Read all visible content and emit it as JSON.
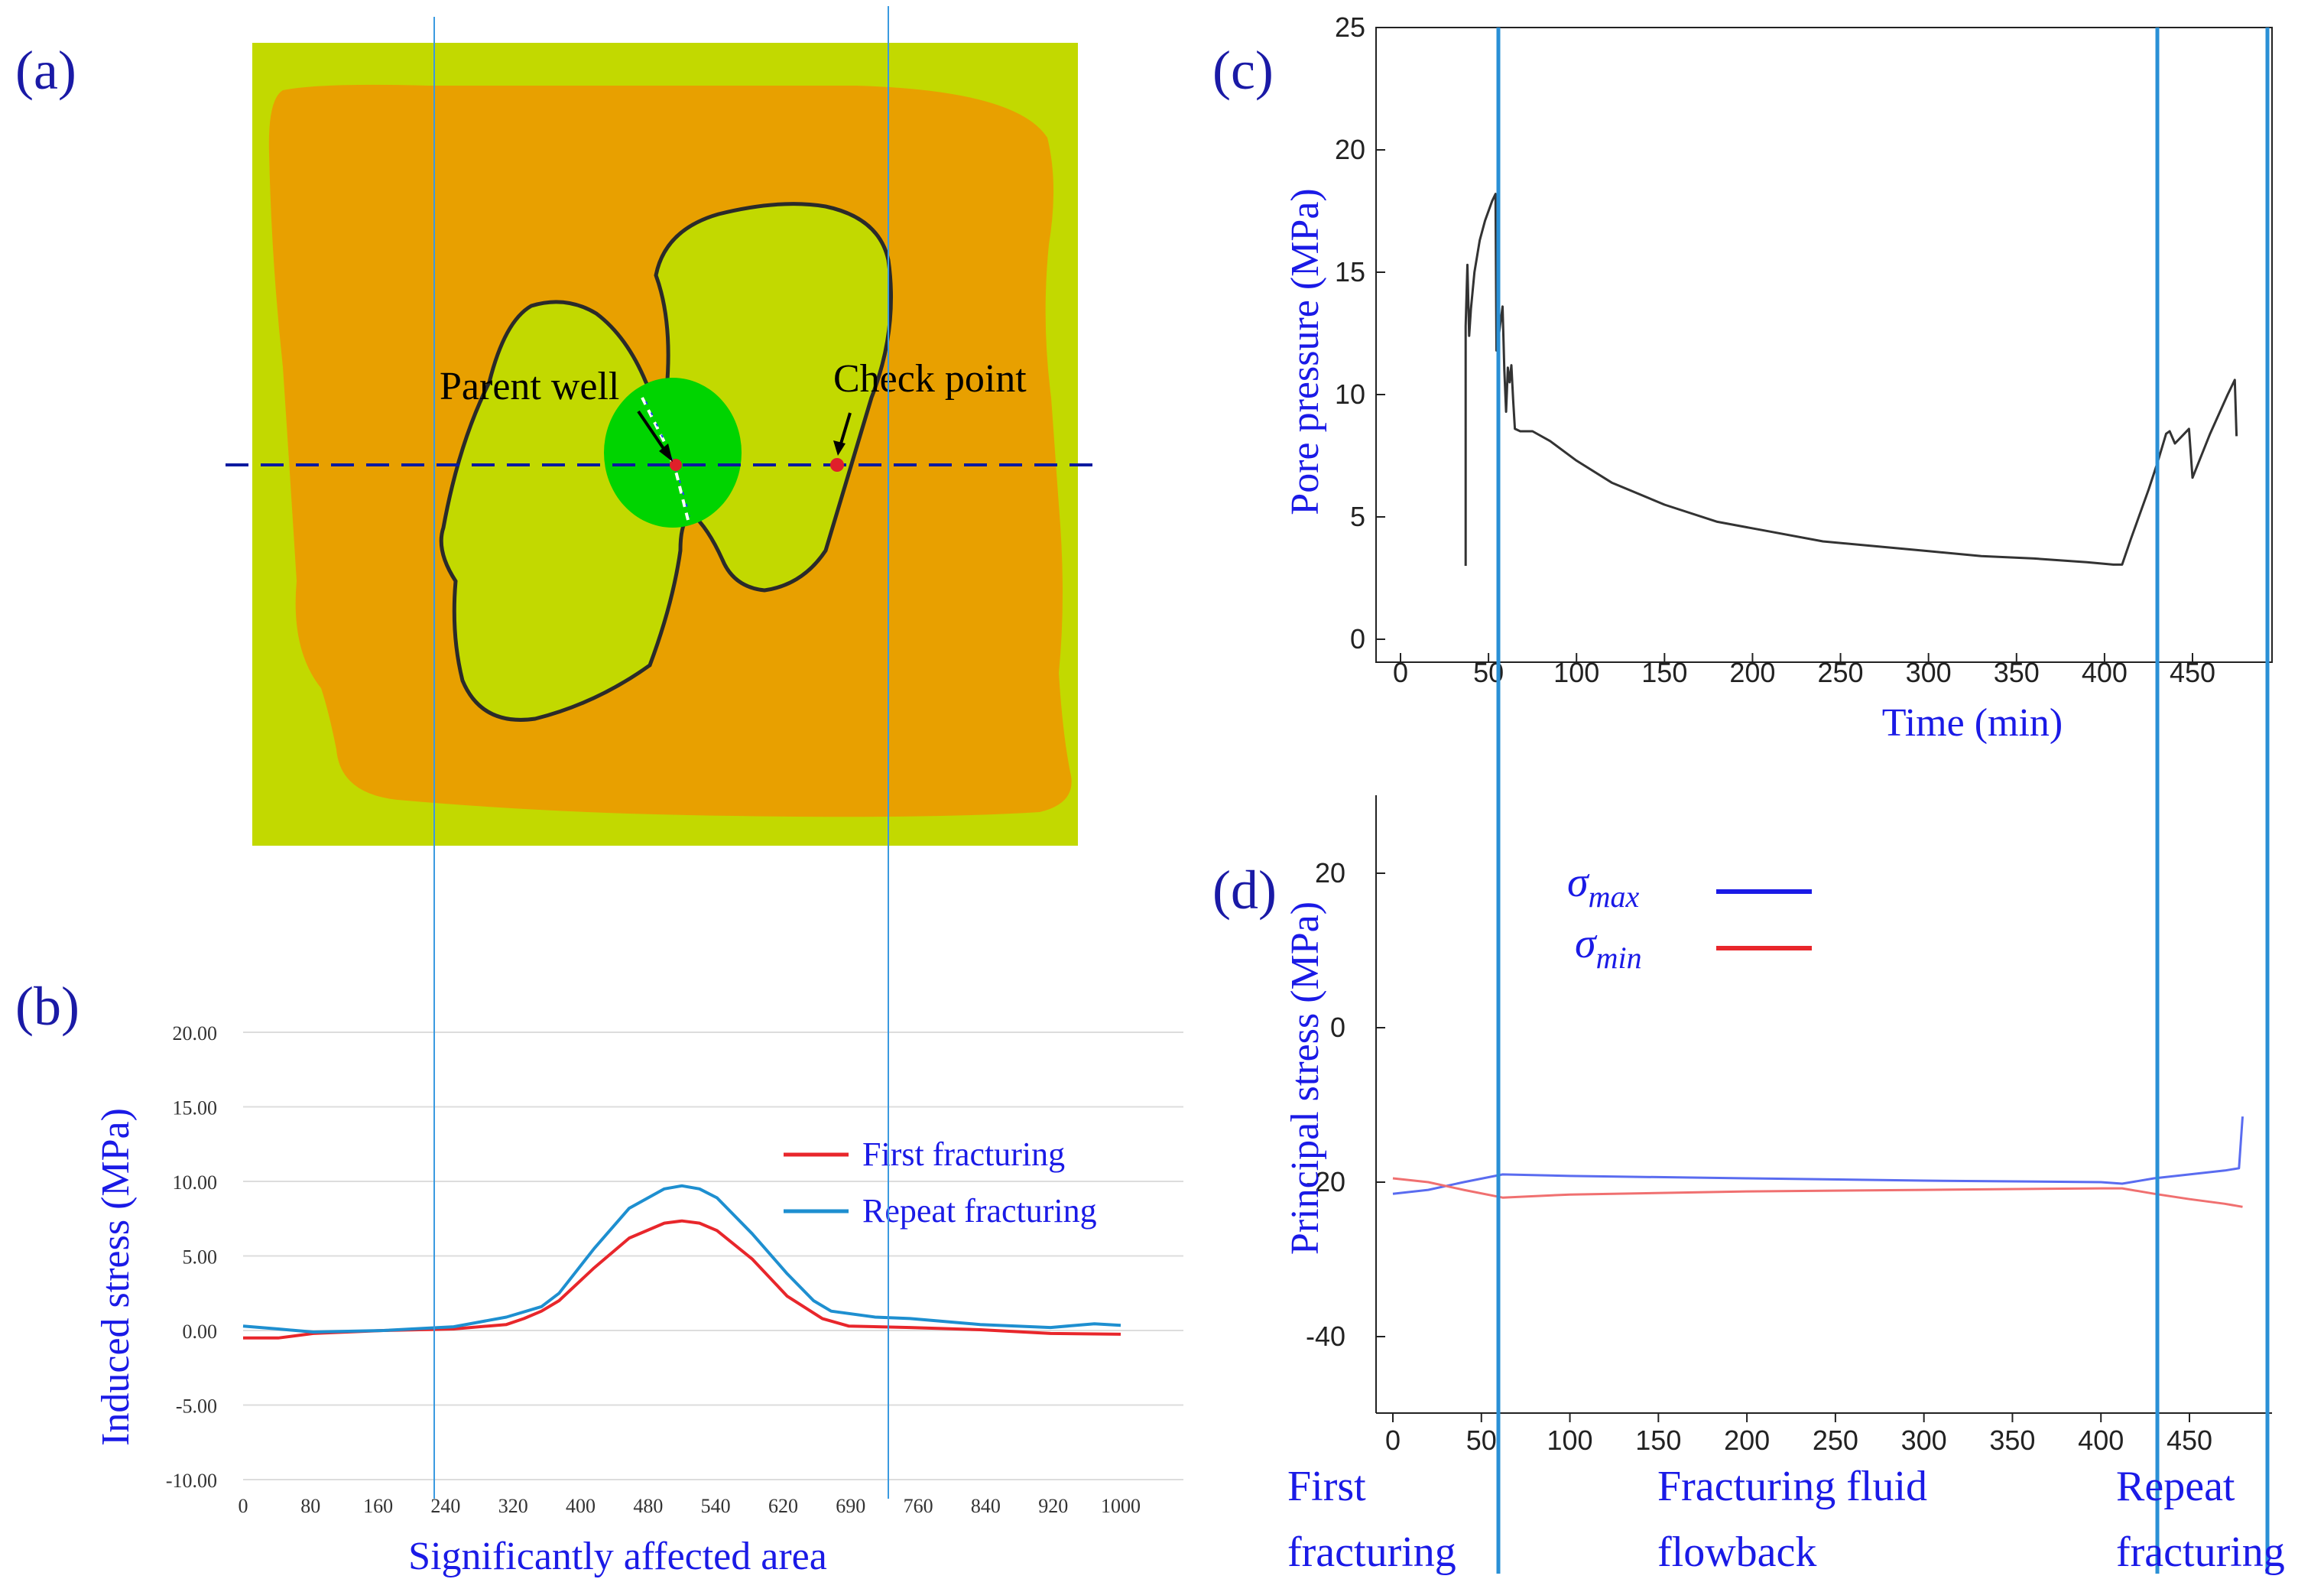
{
  "colors": {
    "label_blue": "#1a1ae6",
    "panel_label": "#1a1aa6",
    "guide": "#2a90d6",
    "series_red": "#e8262b",
    "series_teal": "#1e8fd0",
    "sigma_max": "#5a6cf0",
    "sigma_min": "#f07070",
    "field_outer": "#c2d900",
    "field_orange": "#e8a000",
    "field_green": "#00d400",
    "dash": "#0a1aa0"
  },
  "panel_a": {
    "label": "(a)",
    "parent_well": "Parent well",
    "check_point": "Check point"
  },
  "chart_data": [
    {
      "panel": "(b)",
      "type": "line",
      "xlabel": "Significantly  affected area",
      "ylabel": "Induced stress (MPa)",
      "xlim": [
        0,
        1000
      ],
      "ylim": [
        -10,
        20
      ],
      "x_ticks": [
        "0",
        "80",
        "160",
        "240",
        "320",
        "400",
        "480",
        "540",
        "620",
        "690",
        "760",
        "840",
        "920",
        "1000"
      ],
      "y_ticks": [
        "20.00",
        "15.00",
        "10.00",
        "5.00",
        "0.00",
        "-5.00",
        "-10.00"
      ],
      "series": [
        {
          "name": "First fracturing",
          "color": "#e8262b",
          "points": [
            [
              0,
              -0.5
            ],
            [
              40,
              -0.5
            ],
            [
              80,
              -0.2
            ],
            [
              160,
              0.0
            ],
            [
              240,
              0.1
            ],
            [
              300,
              0.4
            ],
            [
              320,
              0.8
            ],
            [
              340,
              1.3
            ],
            [
              360,
              2.0
            ],
            [
              400,
              4.2
            ],
            [
              440,
              6.2
            ],
            [
              480,
              7.2
            ],
            [
              500,
              7.35
            ],
            [
              520,
              7.2
            ],
            [
              540,
              6.7
            ],
            [
              580,
              4.8
            ],
            [
              620,
              2.3
            ],
            [
              660,
              0.8
            ],
            [
              690,
              0.3
            ],
            [
              760,
              0.2
            ],
            [
              840,
              0.05
            ],
            [
              920,
              -0.2
            ],
            [
              1000,
              -0.25
            ]
          ]
        },
        {
          "name": "Repeat fracturing",
          "color": "#1e8fd0",
          "points": [
            [
              0,
              0.3
            ],
            [
              40,
              0.1
            ],
            [
              80,
              -0.1
            ],
            [
              160,
              0.0
            ],
            [
              240,
              0.25
            ],
            [
              300,
              0.9
            ],
            [
              340,
              1.6
            ],
            [
              360,
              2.5
            ],
            [
              400,
              5.5
            ],
            [
              440,
              8.2
            ],
            [
              480,
              9.5
            ],
            [
              500,
              9.7
            ],
            [
              520,
              9.5
            ],
            [
              540,
              8.9
            ],
            [
              580,
              6.5
            ],
            [
              620,
              3.8
            ],
            [
              650,
              2.0
            ],
            [
              670,
              1.3
            ],
            [
              720,
              0.9
            ],
            [
              760,
              0.8
            ],
            [
              840,
              0.4
            ],
            [
              920,
              0.2
            ],
            [
              970,
              0.45
            ],
            [
              1000,
              0.35
            ]
          ]
        }
      ]
    },
    {
      "panel": "(c)",
      "type": "line",
      "xlabel": "Time (min)",
      "ylabel": "Pore pressure (MPa)",
      "xlim": [
        -10,
        475
      ],
      "ylim": [
        0,
        25
      ],
      "x_ticks": [
        0,
        50,
        100,
        150,
        200,
        250,
        300,
        350,
        400,
        450
      ],
      "y_ticks": [
        0,
        5,
        10,
        15,
        20,
        25
      ],
      "series": [
        {
          "name": "Pore pressure",
          "color": "#333333",
          "points": [
            [
              37,
              3.0
            ],
            [
              37,
              12.8
            ],
            [
              38,
              15.3
            ],
            [
              39,
              12.4
            ],
            [
              40,
              13.5
            ],
            [
              42,
              15.0
            ],
            [
              45,
              16.3
            ],
            [
              48,
              17.1
            ],
            [
              52,
              17.9
            ],
            [
              54,
              18.2
            ],
            [
              54.5,
              11.8
            ],
            [
              56,
              12.5
            ],
            [
              58,
              13.6
            ],
            [
              59,
              11.0
            ],
            [
              60,
              9.3
            ],
            [
              61,
              11.1
            ],
            [
              62,
              10.5
            ],
            [
              63,
              11.2
            ],
            [
              64,
              9.8
            ],
            [
              65,
              8.6
            ],
            [
              68,
              8.5
            ],
            [
              75,
              8.5
            ],
            [
              85,
              8.1
            ],
            [
              100,
              7.3
            ],
            [
              120,
              6.4
            ],
            [
              150,
              5.5
            ],
            [
              180,
              4.8
            ],
            [
              210,
              4.4
            ],
            [
              240,
              4.0
            ],
            [
              270,
              3.8
            ],
            [
              300,
              3.6
            ],
            [
              330,
              3.4
            ],
            [
              360,
              3.3
            ],
            [
              390,
              3.15
            ],
            [
              405,
              3.05
            ],
            [
              410,
              3.05
            ],
            [
              415,
              4.1
            ],
            [
              420,
              5.1
            ],
            [
              425,
              6.1
            ],
            [
              430,
              7.2
            ],
            [
              435,
              8.4
            ],
            [
              437,
              8.5
            ],
            [
              440,
              8.0
            ],
            [
              444,
              8.3
            ],
            [
              448,
              8.6
            ],
            [
              450,
              6.6
            ],
            [
              455,
              7.5
            ],
            [
              460,
              8.4
            ],
            [
              465,
              9.2
            ],
            [
              470,
              10.0
            ],
            [
              474,
              10.6
            ],
            [
              475,
              8.3
            ]
          ]
        }
      ]
    },
    {
      "panel": "(d)",
      "type": "line",
      "xlabel": "",
      "ylabel": "Principal  stress (MPa)",
      "xlim": [
        -5,
        480
      ],
      "ylim": [
        -50,
        30
      ],
      "x_ticks": [
        0,
        50,
        100,
        150,
        200,
        250,
        300,
        350,
        400,
        450
      ],
      "y_ticks": [
        20,
        0,
        -20,
        -40
      ],
      "legend": [
        "σmax",
        "σmin"
      ],
      "legend_colors": [
        "#1a1ae6",
        "#e8262b"
      ],
      "series": [
        {
          "name": "σmax",
          "color": "#5a6cf0",
          "points": [
            [
              0,
              -21.5
            ],
            [
              20,
              -21.0
            ],
            [
              40,
              -20.0
            ],
            [
              62,
              -19.0
            ],
            [
              100,
              -19.2
            ],
            [
              200,
              -19.5
            ],
            [
              300,
              -19.8
            ],
            [
              400,
              -20.0
            ],
            [
              412,
              -20.2
            ],
            [
              430,
              -19.5
            ],
            [
              450,
              -19.0
            ],
            [
              470,
              -18.5
            ],
            [
              478,
              -18.2
            ],
            [
              480,
              -11.5
            ]
          ]
        },
        {
          "name": "σmin",
          "color": "#f07070",
          "points": [
            [
              0,
              -19.5
            ],
            [
              20,
              -20.0
            ],
            [
              40,
              -21.0
            ],
            [
              62,
              -22.0
            ],
            [
              100,
              -21.6
            ],
            [
              200,
              -21.2
            ],
            [
              300,
              -21.0
            ],
            [
              400,
              -20.8
            ],
            [
              412,
              -20.8
            ],
            [
              430,
              -21.5
            ],
            [
              450,
              -22.2
            ],
            [
              470,
              -22.8
            ],
            [
              480,
              -23.2
            ]
          ]
        }
      ]
    }
  ],
  "panel_b": {
    "label": "(b)",
    "legend_first": "First fracturing",
    "legend_repeat": "Repeat fracturing"
  },
  "panel_c": {
    "label": "(c)"
  },
  "panel_d": {
    "label": "(d)",
    "sigma": "σ",
    "sub_max": "max",
    "sub_min": "min"
  },
  "stages": {
    "first_1": "First",
    "first_2": "fracturing",
    "flow_1": "Fracturing  fluid",
    "flow_2": "flowback",
    "repeat_1": "Repeat",
    "repeat_2": "fracturing"
  }
}
